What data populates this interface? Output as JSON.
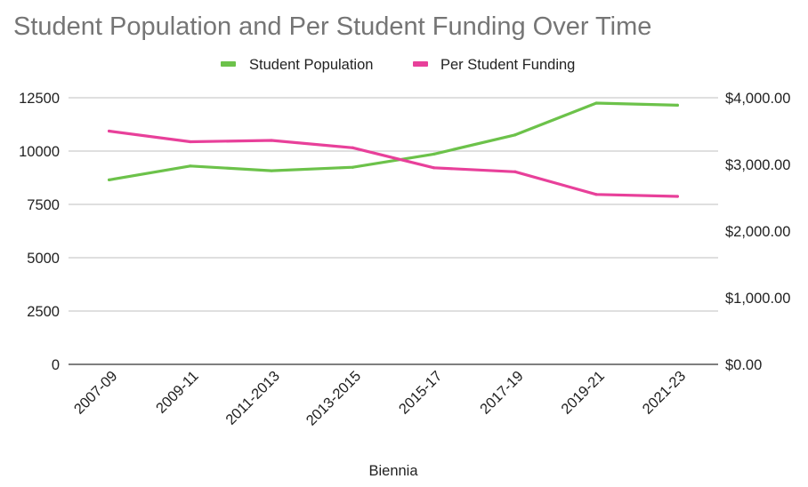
{
  "chart_data": {
    "type": "line",
    "title": "Student Population and Per Student Funding Over Time",
    "xlabel": "Biennia",
    "ylabel": "",
    "ylabel_right": "",
    "categories": [
      "2007-09",
      "2009-11",
      "2011-2013",
      "2013-2015",
      "2015-17",
      "2017-19",
      "2019-21",
      "2021-23"
    ],
    "series": [
      {
        "name": "Student Population",
        "axis": "left",
        "color": "#6cc24a",
        "values": [
          8650,
          9300,
          9080,
          9240,
          9860,
          10760,
          12250,
          12150
        ]
      },
      {
        "name": "Per Student Funding",
        "axis": "right",
        "color": "#e8409a",
        "values": [
          3500,
          3340,
          3360,
          3250,
          2950,
          2890,
          2550,
          2520
        ]
      }
    ],
    "ylim": [
      0,
      12500
    ],
    "ylim_right": [
      0,
      4000
    ],
    "yticks": [
      "0",
      "2500",
      "5000",
      "7500",
      "10000",
      "12500"
    ],
    "yticks_values": [
      0,
      2500,
      5000,
      7500,
      10000,
      12500
    ],
    "yticks_right": [
      "$0.00",
      "$1,000.00",
      "$2,000.00",
      "$3,000.00",
      "$4,000.00"
    ],
    "yticks_right_values": [
      0,
      1000,
      2000,
      3000,
      4000
    ],
    "grid": true,
    "legend": {
      "placement": "top-center",
      "entries": [
        "Student Population",
        "Per Student Funding"
      ]
    }
  }
}
